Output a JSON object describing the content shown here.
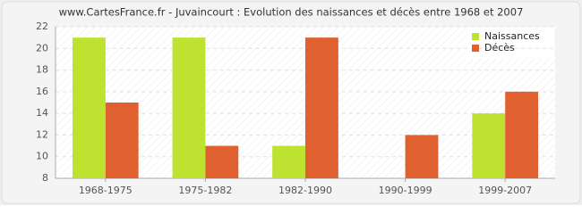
{
  "chart_data": {
    "type": "bar",
    "title": "www.CartesFrance.fr - Juvaincourt : Evolution des naissances et décès entre 1968 et 2007",
    "categories": [
      "1968-1975",
      "1975-1982",
      "1982-1990",
      "1990-1999",
      "1999-2007"
    ],
    "series": [
      {
        "name": "Naissances",
        "color": "#bde22f",
        "values": [
          21,
          21,
          11,
          8,
          14
        ]
      },
      {
        "name": "Décès",
        "color": "#e06030",
        "values": [
          15,
          11,
          21,
          12,
          16
        ]
      }
    ],
    "ylim": [
      8,
      22
    ],
    "yticks": [
      8,
      10,
      12,
      14,
      16,
      18,
      20,
      22
    ],
    "grid": true,
    "legend": "top-right"
  }
}
